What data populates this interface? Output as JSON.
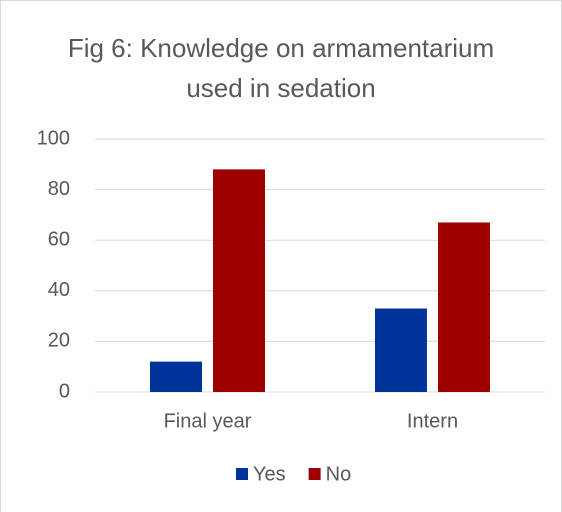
{
  "chart_data": {
    "type": "bar",
    "title": "Fig 6: Knowledge on armamentarium used in sedation",
    "categories": [
      "Final year",
      "Intern"
    ],
    "series": [
      {
        "name": "Yes",
        "color": "#003399",
        "values": [
          12,
          33
        ]
      },
      {
        "name": "No",
        "color": "#9e0000",
        "values": [
          88,
          67
        ]
      }
    ],
    "ylim": [
      0,
      100
    ],
    "yticks": [
      0,
      20,
      40,
      60,
      80,
      100
    ],
    "grid": true,
    "legend": "bottom"
  }
}
